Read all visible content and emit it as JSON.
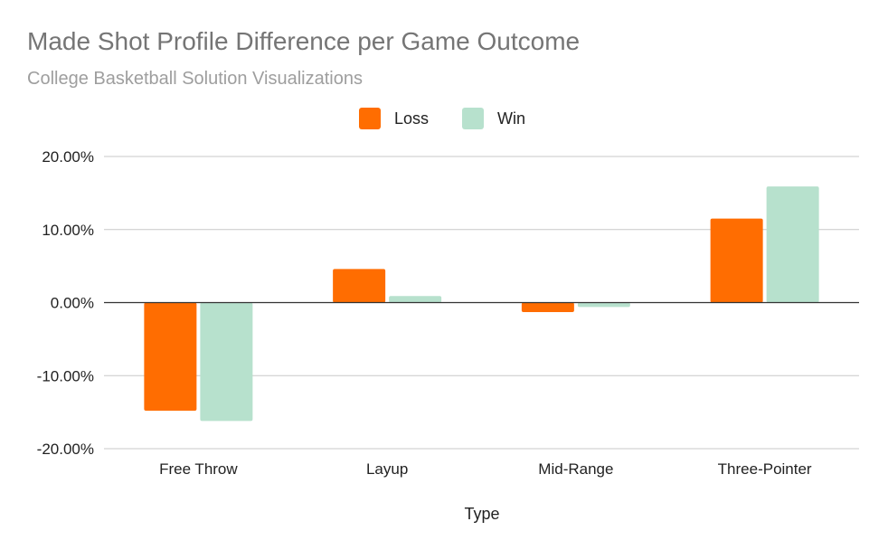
{
  "chart_data": {
    "type": "bar",
    "title": "Made Shot Profile Difference per Game Outcome",
    "subtitle": "College Basketball Solution Visualizations",
    "xlabel": "Type",
    "ylabel": "",
    "categories": [
      "Free Throw",
      "Layup",
      "Mid-Range",
      "Three-Pointer"
    ],
    "series": [
      {
        "name": "Loss",
        "color": "#ff6d01",
        "values": [
          -14.8,
          4.6,
          -1.3,
          11.5
        ]
      },
      {
        "name": "Win",
        "color": "#b7e1cd",
        "values": [
          -16.2,
          0.9,
          -0.6,
          15.9
        ]
      }
    ],
    "ylim": [
      -20,
      20
    ],
    "yticks": [
      20,
      10,
      0,
      -10,
      -20
    ],
    "ytick_labels": [
      "20.00%",
      "10.00%",
      "0.00%",
      "-10.00%",
      "-20.00%"
    ],
    "legend_position": "top",
    "grid": true
  }
}
